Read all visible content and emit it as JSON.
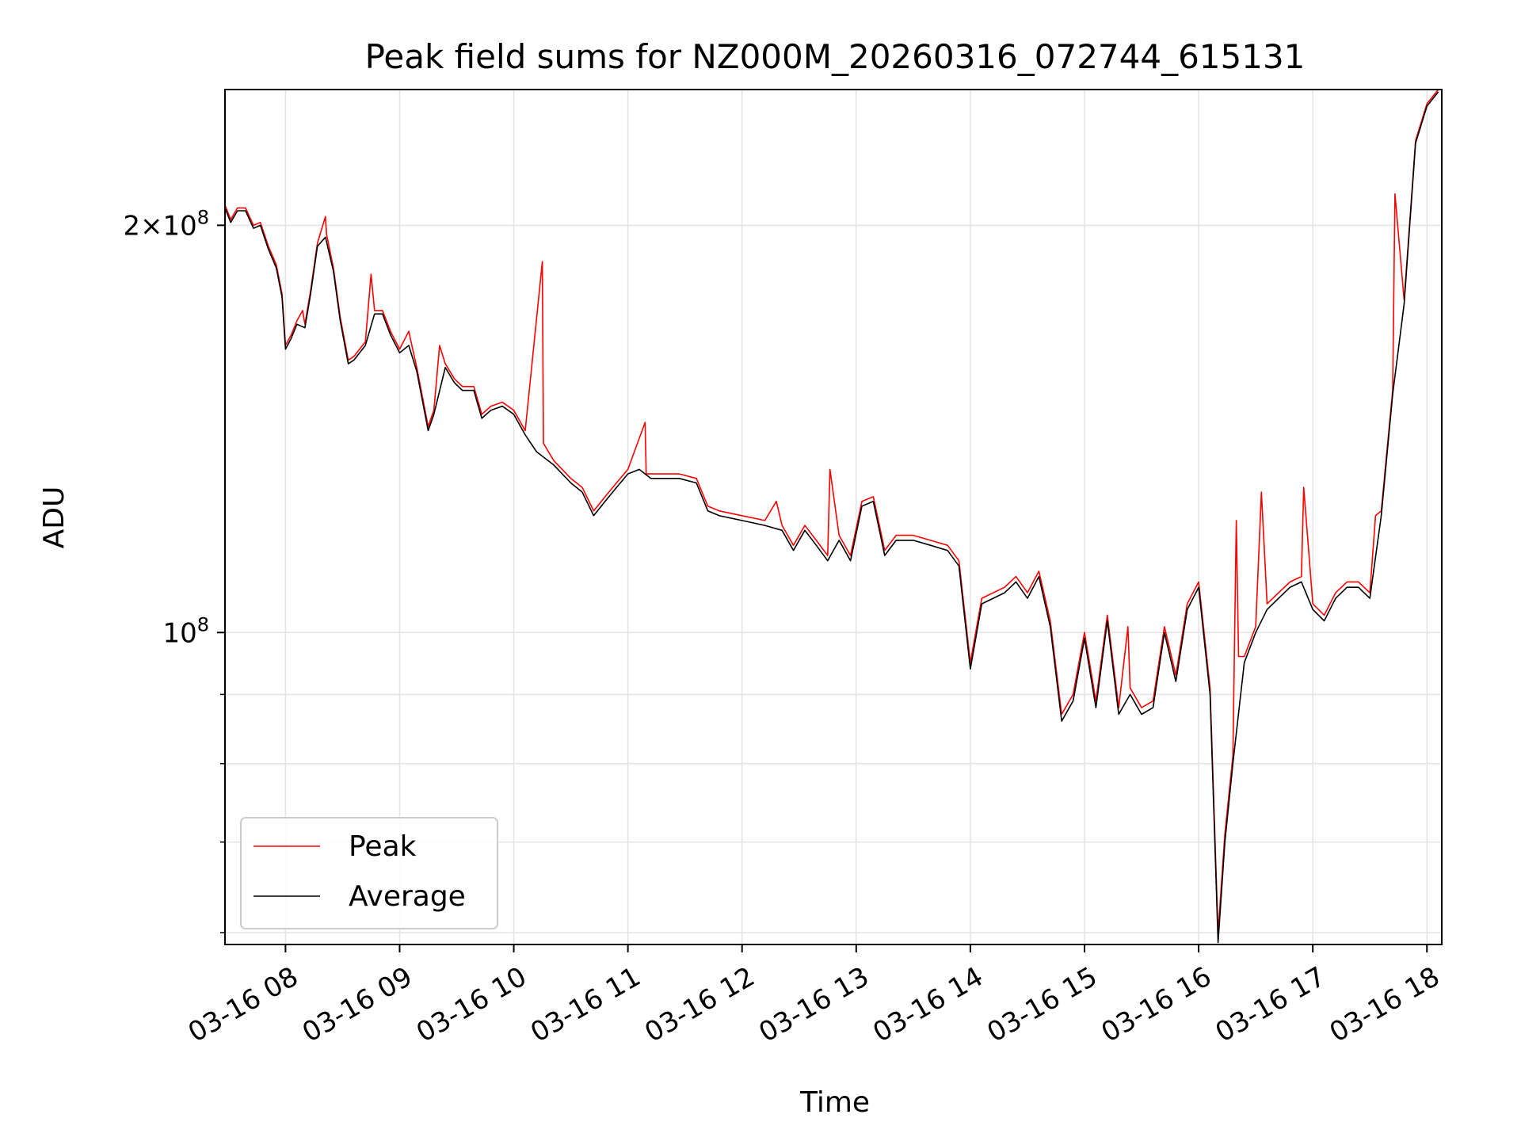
{
  "chart_data": {
    "type": "line",
    "title": "Peak field sums for NZ000M_20260316_072744_615131",
    "xlabel": "Time",
    "ylabel": "ADU",
    "yscale": "log",
    "x_unit": "hours (2026-03-16, time of day)",
    "xlim": [
      7.47,
      18.13
    ],
    "ylim": [
      58800000,
      252000000
    ],
    "grid": true,
    "legend_position": "lower-left",
    "xticks": [
      {
        "value": 8,
        "label": "03-16 08"
      },
      {
        "value": 9,
        "label": "03-16 09"
      },
      {
        "value": 10,
        "label": "03-16 10"
      },
      {
        "value": 11,
        "label": "03-16 11"
      },
      {
        "value": 12,
        "label": "03-16 12"
      },
      {
        "value": 13,
        "label": "03-16 13"
      },
      {
        "value": 14,
        "label": "03-16 14"
      },
      {
        "value": 15,
        "label": "03-16 15"
      },
      {
        "value": 16,
        "label": "03-16 16"
      },
      {
        "value": 17,
        "label": "03-16 17"
      },
      {
        "value": 18,
        "label": "03-16 18"
      }
    ],
    "yticks_major": [
      {
        "value": 100000000,
        "base": "10",
        "exp": "8",
        "coef": ""
      },
      {
        "value": 200000000,
        "base": "10",
        "exp": "8",
        "coef": "2×"
      }
    ],
    "yticks_minor": [
      60000000,
      70000000,
      80000000,
      90000000
    ],
    "series": [
      {
        "name": "Average",
        "color": "#000000",
        "points": [
          [
            7.47,
            206000000
          ],
          [
            7.52,
            201000000
          ],
          [
            7.58,
            205000000
          ],
          [
            7.65,
            205000000
          ],
          [
            7.72,
            199000000
          ],
          [
            7.78,
            200000000
          ],
          [
            7.85,
            192000000
          ],
          [
            7.92,
            186000000
          ],
          [
            7.97,
            177000000
          ],
          [
            8.0,
            162000000
          ],
          [
            8.05,
            165000000
          ],
          [
            8.1,
            169000000
          ],
          [
            8.17,
            168000000
          ],
          [
            8.22,
            178000000
          ],
          [
            8.28,
            193000000
          ],
          [
            8.35,
            196000000
          ],
          [
            8.42,
            185000000
          ],
          [
            8.48,
            170000000
          ],
          [
            8.55,
            158000000
          ],
          [
            8.6,
            159000000
          ],
          [
            8.7,
            163000000
          ],
          [
            8.78,
            172000000
          ],
          [
            8.85,
            172000000
          ],
          [
            8.92,
            166000000
          ],
          [
            9.0,
            161000000
          ],
          [
            9.08,
            163000000
          ],
          [
            9.15,
            156000000
          ],
          [
            9.25,
            141000000
          ],
          [
            9.3,
            145000000
          ],
          [
            9.4,
            157000000
          ],
          [
            9.48,
            153000000
          ],
          [
            9.55,
            151000000
          ],
          [
            9.65,
            151000000
          ],
          [
            9.72,
            144000000
          ],
          [
            9.8,
            146000000
          ],
          [
            9.9,
            147000000
          ],
          [
            10.0,
            145000000
          ],
          [
            10.1,
            140000000
          ],
          [
            10.2,
            136000000
          ],
          [
            10.35,
            133000000
          ],
          [
            10.5,
            129000000
          ],
          [
            10.6,
            127000000
          ],
          [
            10.7,
            122000000
          ],
          [
            10.8,
            125000000
          ],
          [
            10.9,
            128000000
          ],
          [
            11.0,
            131000000
          ],
          [
            11.1,
            132000000
          ],
          [
            11.2,
            130000000
          ],
          [
            11.3,
            130000000
          ],
          [
            11.45,
            130000000
          ],
          [
            11.6,
            129000000
          ],
          [
            11.7,
            123000000
          ],
          [
            11.8,
            122000000
          ],
          [
            12.0,
            121000000
          ],
          [
            12.2,
            120000000
          ],
          [
            12.35,
            119000000
          ],
          [
            12.45,
            115000000
          ],
          [
            12.55,
            119000000
          ],
          [
            12.65,
            116000000
          ],
          [
            12.75,
            113000000
          ],
          [
            12.85,
            117000000
          ],
          [
            12.95,
            113000000
          ],
          [
            13.05,
            124000000
          ],
          [
            13.15,
            125000000
          ],
          [
            13.25,
            114000000
          ],
          [
            13.35,
            117000000
          ],
          [
            13.5,
            117000000
          ],
          [
            13.65,
            116000000
          ],
          [
            13.8,
            115000000
          ],
          [
            13.9,
            112000000
          ],
          [
            14.0,
            94000000
          ],
          [
            14.1,
            105000000
          ],
          [
            14.2,
            106000000
          ],
          [
            14.3,
            107000000
          ],
          [
            14.4,
            109000000
          ],
          [
            14.5,
            106000000
          ],
          [
            14.6,
            110000000
          ],
          [
            14.7,
            101000000
          ],
          [
            14.8,
            86000000
          ],
          [
            14.9,
            89000000
          ],
          [
            15.0,
            99000000
          ],
          [
            15.1,
            88000000
          ],
          [
            15.2,
            102000000
          ],
          [
            15.3,
            87000000
          ],
          [
            15.4,
            90000000
          ],
          [
            15.5,
            87000000
          ],
          [
            15.6,
            88000000
          ],
          [
            15.7,
            100000000
          ],
          [
            15.8,
            92000000
          ],
          [
            15.9,
            104000000
          ],
          [
            16.0,
            108000000
          ],
          [
            16.1,
            90000000
          ],
          [
            16.17,
            59000000
          ],
          [
            16.23,
            70000000
          ],
          [
            16.3,
            80000000
          ],
          [
            16.4,
            95000000
          ],
          [
            16.5,
            100000000
          ],
          [
            16.6,
            104000000
          ],
          [
            16.7,
            106000000
          ],
          [
            16.8,
            108000000
          ],
          [
            16.9,
            109000000
          ],
          [
            17.0,
            104000000
          ],
          [
            17.1,
            102000000
          ],
          [
            17.2,
            106000000
          ],
          [
            17.3,
            108000000
          ],
          [
            17.4,
            108000000
          ],
          [
            17.5,
            106000000
          ],
          [
            17.6,
            122000000
          ],
          [
            17.7,
            150000000
          ],
          [
            17.8,
            175000000
          ],
          [
            17.9,
            230000000
          ],
          [
            18.0,
            245000000
          ],
          [
            18.1,
            251000000
          ]
        ]
      },
      {
        "name": "Peak",
        "color": "#ff0000",
        "points": [
          [
            7.47,
            207000000
          ],
          [
            7.52,
            202000000
          ],
          [
            7.58,
            206000000
          ],
          [
            7.65,
            206000000
          ],
          [
            7.72,
            200000000
          ],
          [
            7.78,
            201000000
          ],
          [
            7.85,
            193000000
          ],
          [
            7.92,
            187000000
          ],
          [
            7.97,
            178000000
          ],
          [
            8.0,
            163000000
          ],
          [
            8.05,
            166000000
          ],
          [
            8.1,
            170000000
          ],
          [
            8.15,
            173000000
          ],
          [
            8.17,
            169000000
          ],
          [
            8.22,
            179000000
          ],
          [
            8.28,
            194000000
          ],
          [
            8.35,
            203000000
          ],
          [
            8.36,
            197000000
          ],
          [
            8.42,
            186000000
          ],
          [
            8.48,
            171000000
          ],
          [
            8.55,
            159000000
          ],
          [
            8.6,
            160000000
          ],
          [
            8.7,
            164000000
          ],
          [
            8.75,
            184000000
          ],
          [
            8.78,
            173000000
          ],
          [
            8.85,
            173000000
          ],
          [
            8.92,
            167000000
          ],
          [
            9.0,
            162000000
          ],
          [
            9.08,
            167000000
          ],
          [
            9.1,
            164000000
          ],
          [
            9.15,
            157000000
          ],
          [
            9.25,
            142000000
          ],
          [
            9.3,
            146000000
          ],
          [
            9.35,
            163000000
          ],
          [
            9.4,
            158000000
          ],
          [
            9.48,
            154000000
          ],
          [
            9.55,
            152000000
          ],
          [
            9.65,
            152000000
          ],
          [
            9.72,
            145000000
          ],
          [
            9.8,
            147000000
          ],
          [
            9.9,
            148000000
          ],
          [
            10.0,
            146000000
          ],
          [
            10.1,
            141000000
          ],
          [
            10.25,
            188000000
          ],
          [
            10.26,
            138000000
          ],
          [
            10.35,
            134000000
          ],
          [
            10.5,
            130000000
          ],
          [
            10.6,
            128000000
          ],
          [
            10.7,
            123000000
          ],
          [
            10.8,
            126000000
          ],
          [
            10.9,
            129000000
          ],
          [
            11.0,
            132000000
          ],
          [
            11.15,
            143000000
          ],
          [
            11.16,
            131000000
          ],
          [
            11.3,
            131000000
          ],
          [
            11.45,
            131000000
          ],
          [
            11.6,
            130000000
          ],
          [
            11.7,
            124000000
          ],
          [
            11.8,
            123000000
          ],
          [
            12.0,
            122000000
          ],
          [
            12.2,
            121000000
          ],
          [
            12.3,
            125000000
          ],
          [
            12.35,
            120000000
          ],
          [
            12.45,
            116000000
          ],
          [
            12.55,
            120000000
          ],
          [
            12.65,
            117000000
          ],
          [
            12.75,
            114000000
          ],
          [
            12.77,
            132000000
          ],
          [
            12.85,
            118000000
          ],
          [
            12.95,
            114000000
          ],
          [
            13.05,
            125000000
          ],
          [
            13.15,
            126000000
          ],
          [
            13.25,
            115000000
          ],
          [
            13.35,
            118000000
          ],
          [
            13.5,
            118000000
          ],
          [
            13.65,
            117000000
          ],
          [
            13.8,
            116000000
          ],
          [
            13.9,
            113000000
          ],
          [
            14.0,
            95000000
          ],
          [
            14.1,
            106000000
          ],
          [
            14.2,
            107000000
          ],
          [
            14.3,
            108000000
          ],
          [
            14.4,
            110000000
          ],
          [
            14.5,
            107000000
          ],
          [
            14.6,
            111000000
          ],
          [
            14.7,
            102000000
          ],
          [
            14.8,
            87000000
          ],
          [
            14.9,
            90000000
          ],
          [
            15.0,
            100000000
          ],
          [
            15.1,
            89000000
          ],
          [
            15.2,
            103000000
          ],
          [
            15.3,
            88000000
          ],
          [
            15.38,
            101000000
          ],
          [
            15.4,
            91000000
          ],
          [
            15.5,
            88000000
          ],
          [
            15.6,
            89000000
          ],
          [
            15.7,
            101000000
          ],
          [
            15.8,
            93000000
          ],
          [
            15.9,
            105000000
          ],
          [
            16.0,
            109000000
          ],
          [
            16.1,
            91000000
          ],
          [
            16.17,
            60000000
          ],
          [
            16.23,
            71000000
          ],
          [
            16.3,
            81000000
          ],
          [
            16.33,
            121000000
          ],
          [
            16.35,
            96000000
          ],
          [
            16.4,
            96000000
          ],
          [
            16.5,
            101000000
          ],
          [
            16.55,
            127000000
          ],
          [
            16.6,
            105000000
          ],
          [
            16.7,
            107000000
          ],
          [
            16.8,
            109000000
          ],
          [
            16.92,
            128000000
          ],
          [
            16.9,
            110000000
          ],
          [
            17.0,
            105000000
          ],
          [
            17.1,
            103000000
          ],
          [
            17.2,
            107000000
          ],
          [
            17.3,
            109000000
          ],
          [
            17.4,
            109000000
          ],
          [
            17.5,
            107000000
          ],
          [
            17.55,
            122000000
          ],
          [
            17.6,
            123000000
          ],
          [
            17.7,
            151000000
          ],
          [
            17.72,
            211000000
          ],
          [
            17.8,
            176000000
          ],
          [
            17.9,
            231000000
          ],
          [
            18.0,
            246000000
          ],
          [
            18.1,
            252000000
          ]
        ]
      }
    ]
  },
  "legend": [
    {
      "label": "Peak",
      "color": "#ff0000"
    },
    {
      "label": "Average",
      "color": "#000000"
    }
  ]
}
